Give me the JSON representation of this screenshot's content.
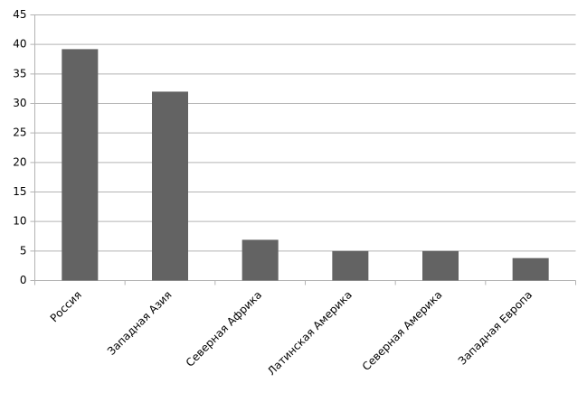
{
  "chart_data": {
    "type": "bar",
    "categories": [
      "Россия",
      "Западная Азия",
      "Северная Африка",
      "Латинская Америка",
      "Северная Америка",
      "Западная Европа"
    ],
    "values": [
      39.2,
      32,
      6.9,
      5,
      5,
      3.8
    ],
    "color": "#636363",
    "ylim": [
      0,
      45
    ],
    "yticks": [
      0,
      5,
      10,
      15,
      20,
      25,
      30,
      35,
      40,
      45
    ],
    "grid": true
  }
}
